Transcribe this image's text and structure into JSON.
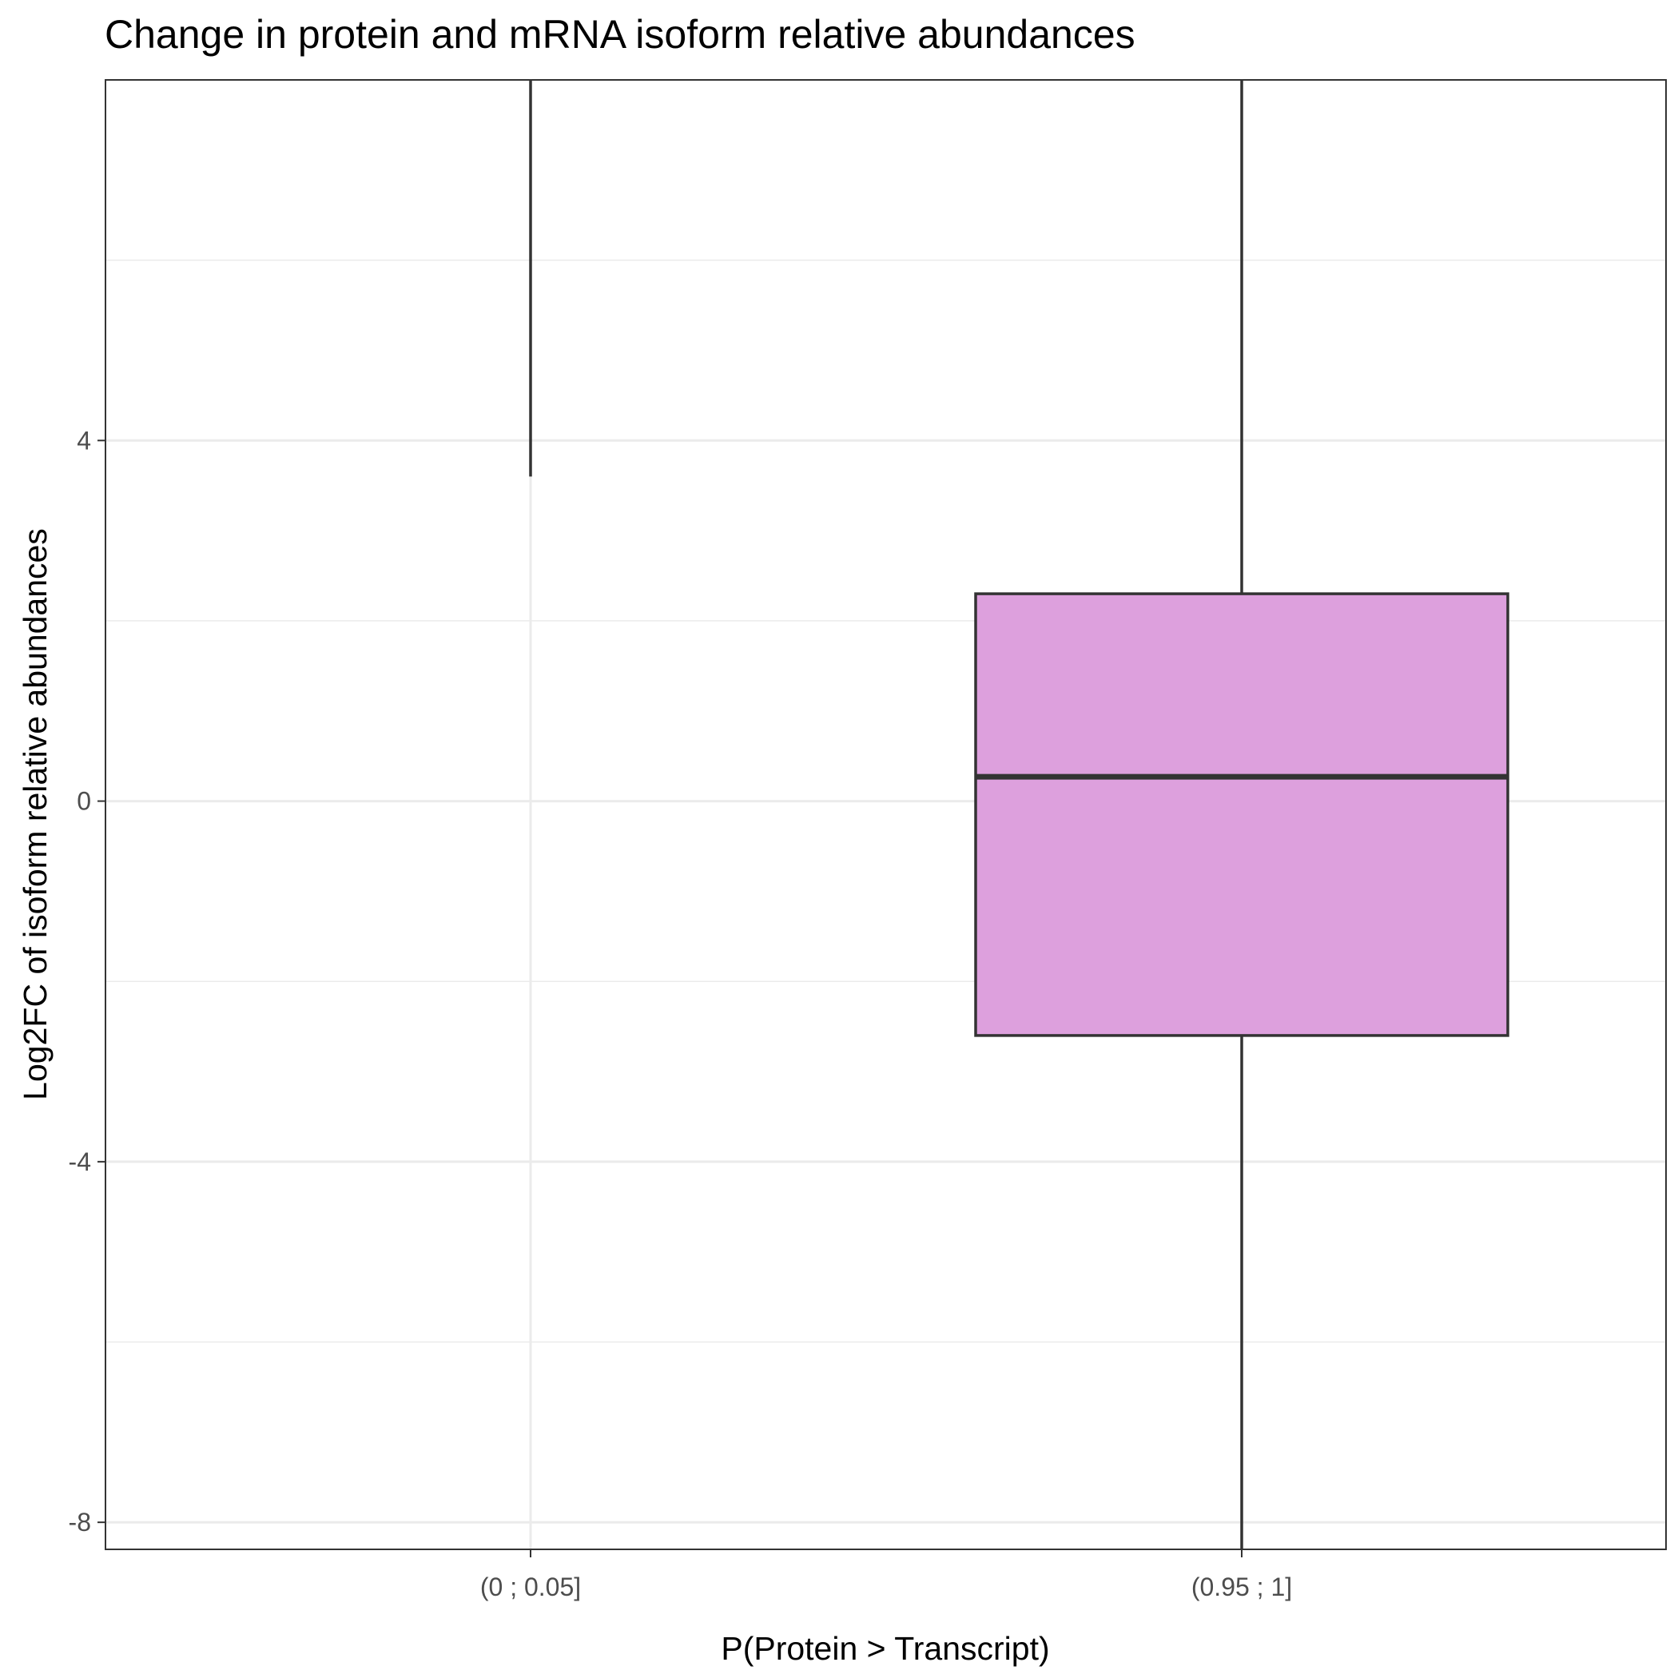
{
  "chart_data": {
    "type": "boxplot",
    "title": "Change in protein and mRNA isoform relative abundances",
    "xlabel": "P(Protein > Transcript)",
    "ylabel": "Log2FC of isoform relative abundances",
    "categories": [
      "(0 ; 0.05]",
      "(0.95 ; 1]"
    ],
    "ylim": [
      -8.3,
      8.0
    ],
    "y_ticks": [
      -8,
      -4,
      0,
      4
    ],
    "y_minor_ticks": [
      -6,
      -2,
      2,
      6
    ],
    "grid": true,
    "legend": "none",
    "fill_color": "#dda0dd",
    "outline_color": "#333333",
    "boxes": [
      {
        "category": "(0 ; 0.05]",
        "whisker_low": 3.6,
        "whisker_high": 8.0,
        "q1": null,
        "median": null,
        "q3": null
      },
      {
        "category": "(0.95 ; 1]",
        "whisker_low": -8.3,
        "q1": -2.6,
        "median": 0.27,
        "q3": 2.3,
        "whisker_high": 8.0
      }
    ]
  }
}
